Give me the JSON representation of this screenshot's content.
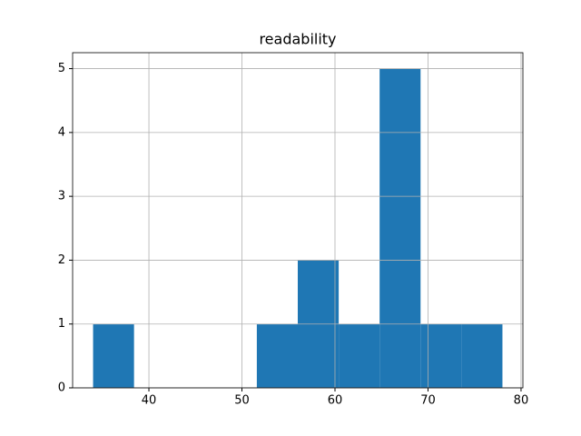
{
  "chart_data": {
    "type": "histogram",
    "title": "readability",
    "bins": [
      34,
      38.4,
      42.8,
      47.2,
      51.6,
      56,
      60.4,
      64.8,
      69.2,
      73.6,
      78
    ],
    "values": [
      1,
      0,
      0,
      0,
      1,
      2,
      1,
      5,
      1,
      1
    ],
    "color": "#1f77b4",
    "xlim": [
      31.8,
      80.2
    ],
    "xticks": [
      40,
      50,
      60,
      70,
      80
    ],
    "ylim": [
      0,
      5.25
    ],
    "yticks": [
      0,
      1,
      2,
      3,
      4,
      5
    ],
    "grid": true
  }
}
